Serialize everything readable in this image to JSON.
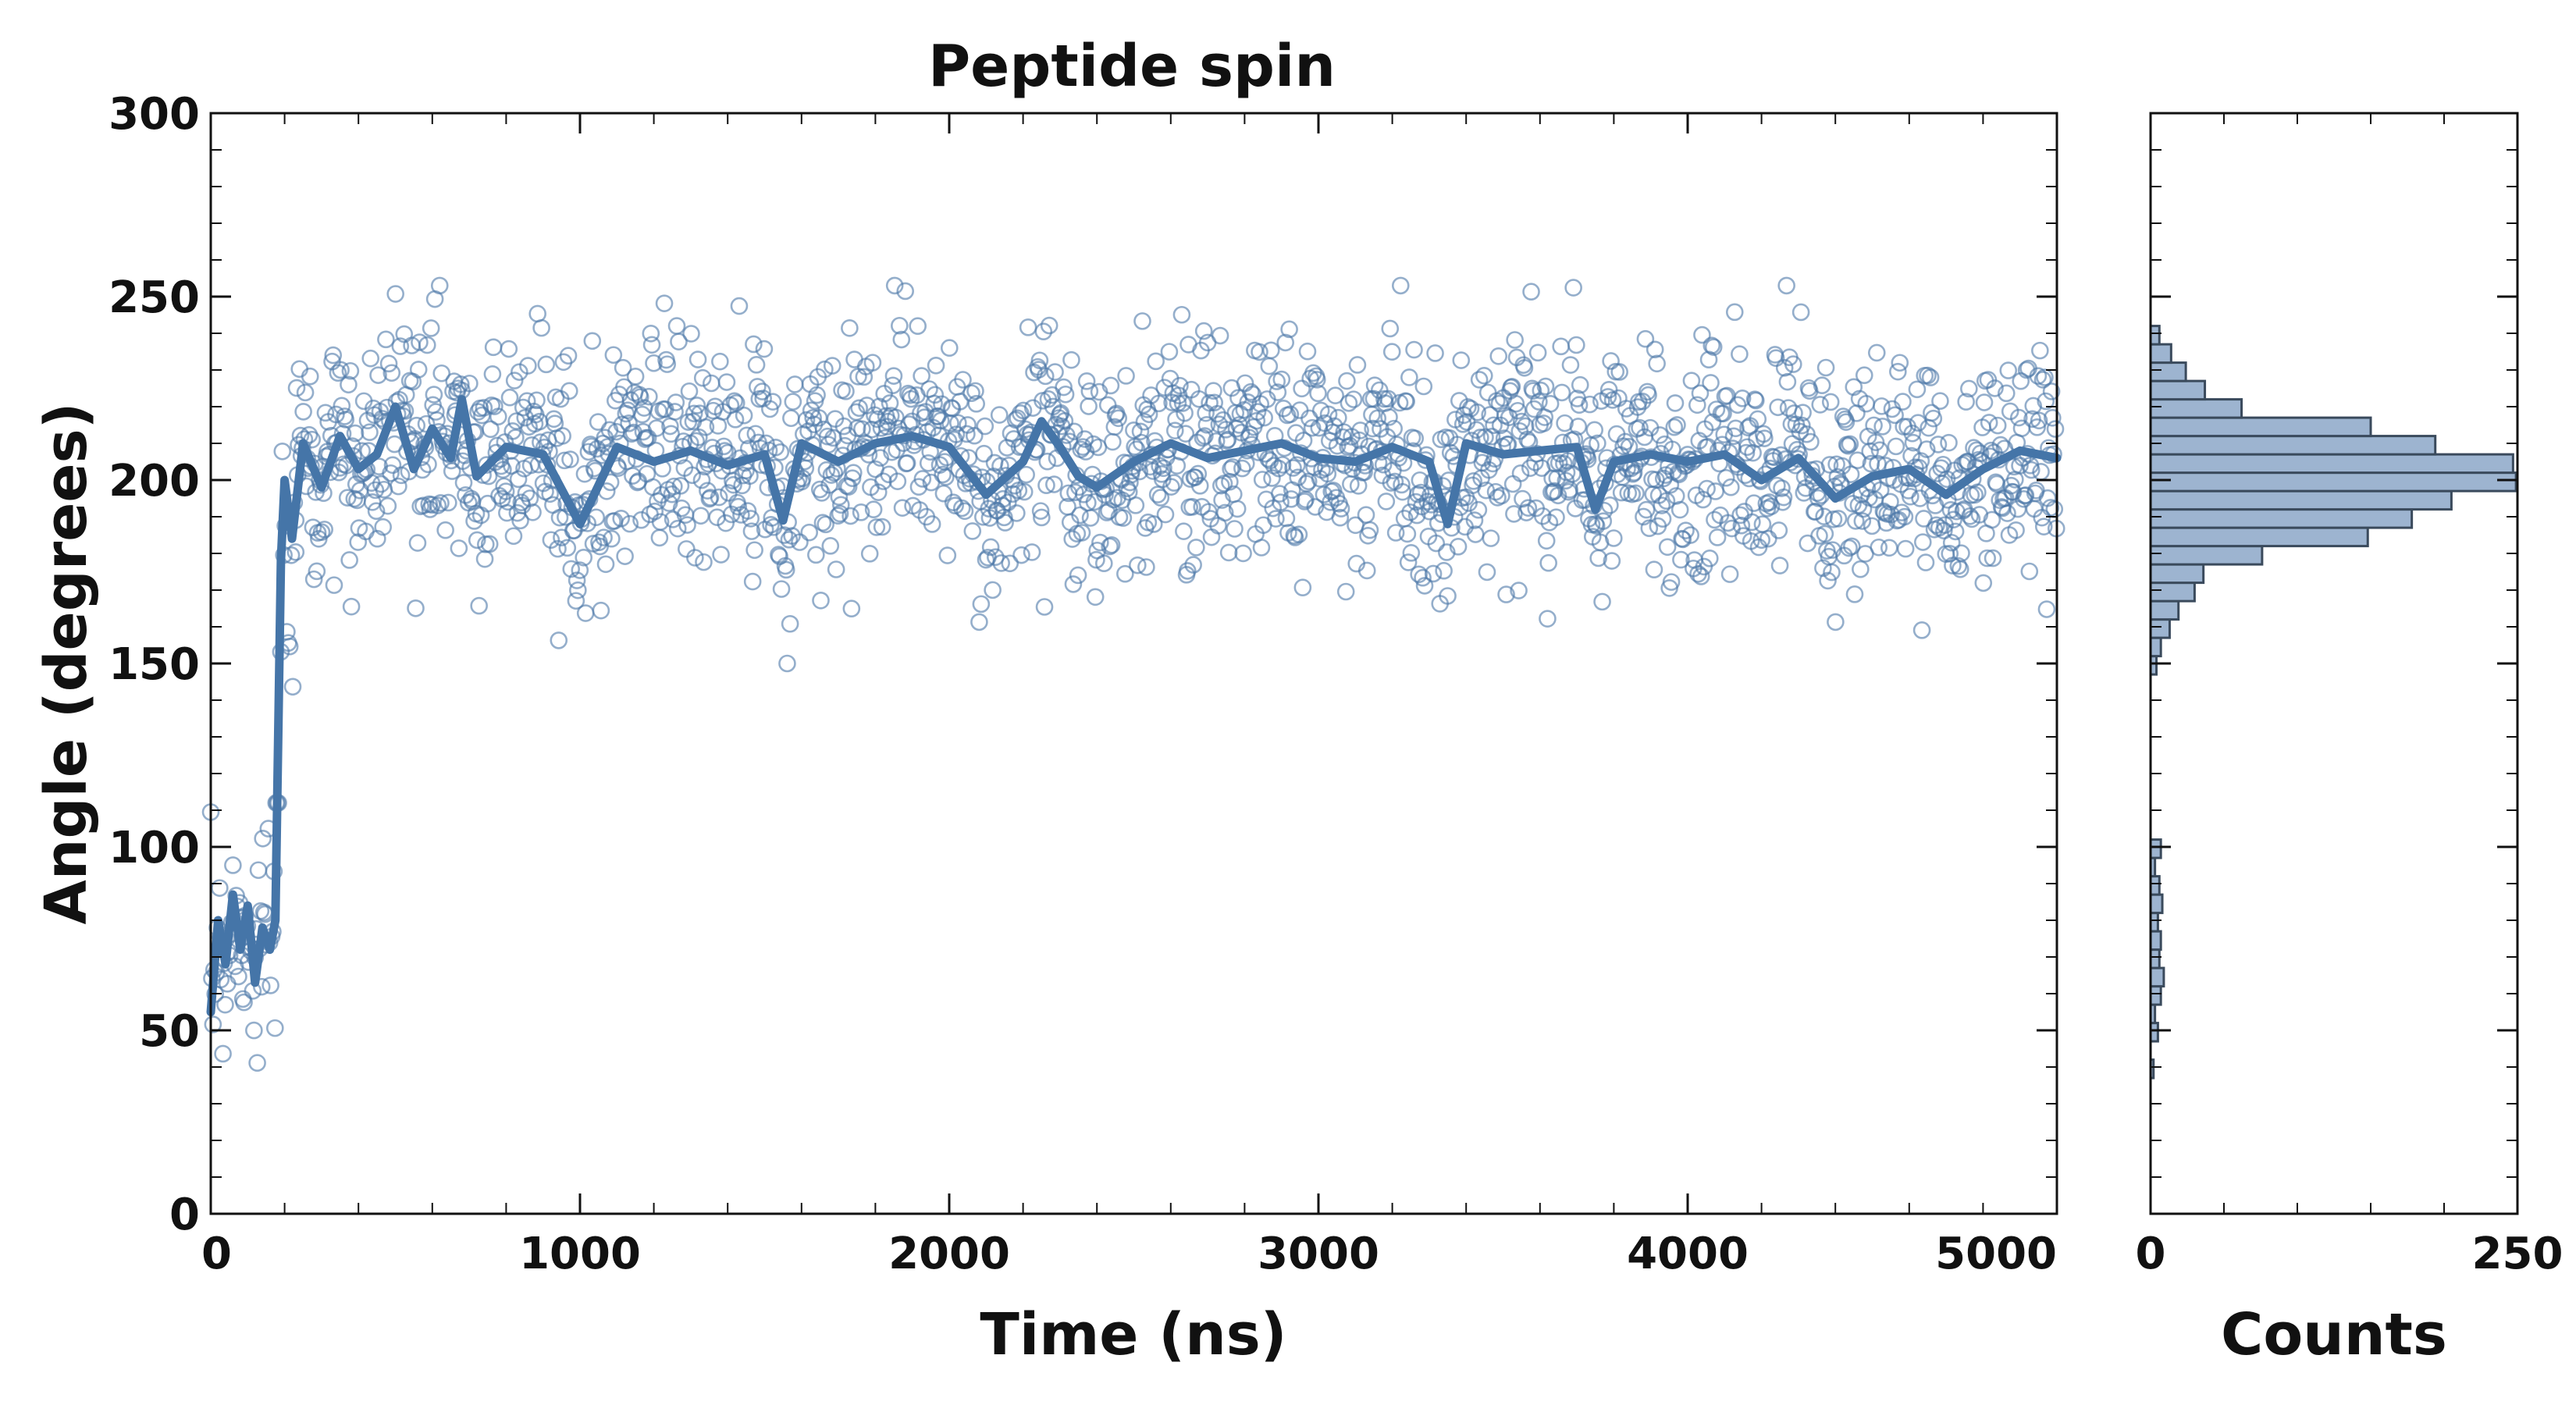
{
  "chart_data": {
    "type": "scatter",
    "title": "Peptide spin",
    "colors": {
      "marker": "#4c78a8",
      "line": "#4575a8",
      "hist_fill": "#9db4d0",
      "hist_edge": "#3a4a5c"
    },
    "main": {
      "xlabel": "Time (ns)",
      "ylabel": "Angle (degrees)",
      "xlim": [
        0,
        5000
      ],
      "ylim": [
        0,
        300
      ],
      "xticks": [
        "0",
        "1000",
        "2000",
        "3000",
        "4000",
        "5000"
      ],
      "yticks": [
        "0",
        "50",
        "100",
        "150",
        "200",
        "250",
        "300"
      ],
      "grid": false,
      "scatter_summary": {
        "marker": "open-circle",
        "pre_transition_x_range": [
          0,
          180
        ],
        "pre_transition_y_range": [
          32,
          112
        ],
        "post_transition_x_range": [
          200,
          5000
        ],
        "post_transition_y_center": 205,
        "post_transition_y_range": [
          150,
          253
        ]
      },
      "running_mean": [
        {
          "x": 0,
          "y": 55
        },
        {
          "x": 20,
          "y": 80
        },
        {
          "x": 40,
          "y": 68
        },
        {
          "x": 60,
          "y": 87
        },
        {
          "x": 80,
          "y": 72
        },
        {
          "x": 100,
          "y": 84
        },
        {
          "x": 120,
          "y": 63
        },
        {
          "x": 140,
          "y": 78
        },
        {
          "x": 160,
          "y": 72
        },
        {
          "x": 175,
          "y": 80
        },
        {
          "x": 190,
          "y": 178
        },
        {
          "x": 200,
          "y": 200
        },
        {
          "x": 220,
          "y": 184
        },
        {
          "x": 250,
          "y": 210
        },
        {
          "x": 300,
          "y": 198
        },
        {
          "x": 350,
          "y": 212
        },
        {
          "x": 400,
          "y": 203
        },
        {
          "x": 450,
          "y": 207
        },
        {
          "x": 500,
          "y": 220
        },
        {
          "x": 550,
          "y": 203
        },
        {
          "x": 600,
          "y": 214
        },
        {
          "x": 650,
          "y": 206
        },
        {
          "x": 680,
          "y": 222
        },
        {
          "x": 720,
          "y": 201
        },
        {
          "x": 800,
          "y": 209
        },
        {
          "x": 900,
          "y": 207
        },
        {
          "x": 1000,
          "y": 188
        },
        {
          "x": 1100,
          "y": 209
        },
        {
          "x": 1200,
          "y": 205
        },
        {
          "x": 1300,
          "y": 208
        },
        {
          "x": 1400,
          "y": 204
        },
        {
          "x": 1500,
          "y": 207
        },
        {
          "x": 1550,
          "y": 189
        },
        {
          "x": 1600,
          "y": 210
        },
        {
          "x": 1700,
          "y": 205
        },
        {
          "x": 1800,
          "y": 210
        },
        {
          "x": 1900,
          "y": 212
        },
        {
          "x": 2000,
          "y": 209
        },
        {
          "x": 2100,
          "y": 196
        },
        {
          "x": 2200,
          "y": 205
        },
        {
          "x": 2250,
          "y": 216
        },
        {
          "x": 2300,
          "y": 209
        },
        {
          "x": 2350,
          "y": 201
        },
        {
          "x": 2400,
          "y": 198
        },
        {
          "x": 2500,
          "y": 205
        },
        {
          "x": 2600,
          "y": 210
        },
        {
          "x": 2700,
          "y": 206
        },
        {
          "x": 2800,
          "y": 208
        },
        {
          "x": 2900,
          "y": 210
        },
        {
          "x": 3000,
          "y": 206
        },
        {
          "x": 3100,
          "y": 205
        },
        {
          "x": 3200,
          "y": 209
        },
        {
          "x": 3300,
          "y": 205
        },
        {
          "x": 3350,
          "y": 188
        },
        {
          "x": 3400,
          "y": 210
        },
        {
          "x": 3500,
          "y": 207
        },
        {
          "x": 3600,
          "y": 208
        },
        {
          "x": 3700,
          "y": 209
        },
        {
          "x": 3750,
          "y": 192
        },
        {
          "x": 3800,
          "y": 205
        },
        {
          "x": 3900,
          "y": 207
        },
        {
          "x": 4000,
          "y": 205
        },
        {
          "x": 4100,
          "y": 207
        },
        {
          "x": 4200,
          "y": 200
        },
        {
          "x": 4300,
          "y": 206
        },
        {
          "x": 4400,
          "y": 195
        },
        {
          "x": 4500,
          "y": 201
        },
        {
          "x": 4600,
          "y": 203
        },
        {
          "x": 4700,
          "y": 196
        },
        {
          "x": 4800,
          "y": 203
        },
        {
          "x": 4900,
          "y": 208
        },
        {
          "x": 5000,
          "y": 206
        }
      ]
    },
    "histogram": {
      "orientation": "horizontal",
      "xlabel": "Counts",
      "xlim": [
        0,
        250
      ],
      "xticks": [
        "0",
        "250"
      ],
      "ylim": [
        0,
        300
      ],
      "bins": [
        {
          "y0": 37,
          "y1": 42,
          "count": 2
        },
        {
          "y0": 47,
          "y1": 52,
          "count": 5
        },
        {
          "y0": 52,
          "y1": 57,
          "count": 3
        },
        {
          "y0": 57,
          "y1": 62,
          "count": 7
        },
        {
          "y0": 62,
          "y1": 67,
          "count": 9
        },
        {
          "y0": 67,
          "y1": 72,
          "count": 6
        },
        {
          "y0": 72,
          "y1": 77,
          "count": 7
        },
        {
          "y0": 77,
          "y1": 82,
          "count": 5
        },
        {
          "y0": 82,
          "y1": 87,
          "count": 8
        },
        {
          "y0": 87,
          "y1": 92,
          "count": 6
        },
        {
          "y0": 92,
          "y1": 97,
          "count": 3
        },
        {
          "y0": 97,
          "y1": 102,
          "count": 7
        },
        {
          "y0": 147,
          "y1": 152,
          "count": 4
        },
        {
          "y0": 152,
          "y1": 157,
          "count": 7
        },
        {
          "y0": 157,
          "y1": 162,
          "count": 13
        },
        {
          "y0": 162,
          "y1": 167,
          "count": 19
        },
        {
          "y0": 167,
          "y1": 172,
          "count": 30
        },
        {
          "y0": 172,
          "y1": 177,
          "count": 36
        },
        {
          "y0": 177,
          "y1": 182,
          "count": 76
        },
        {
          "y0": 182,
          "y1": 187,
          "count": 148
        },
        {
          "y0": 187,
          "y1": 192,
          "count": 178
        },
        {
          "y0": 192,
          "y1": 197,
          "count": 205
        },
        {
          "y0": 197,
          "y1": 202,
          "count": 249
        },
        {
          "y0": 202,
          "y1": 207,
          "count": 247
        },
        {
          "y0": 207,
          "y1": 212,
          "count": 194
        },
        {
          "y0": 212,
          "y1": 217,
          "count": 150
        },
        {
          "y0": 217,
          "y1": 222,
          "count": 62
        },
        {
          "y0": 222,
          "y1": 227,
          "count": 37
        },
        {
          "y0": 227,
          "y1": 232,
          "count": 24
        },
        {
          "y0": 232,
          "y1": 237,
          "count": 14
        },
        {
          "y0": 237,
          "y1": 242,
          "count": 6
        }
      ]
    }
  }
}
